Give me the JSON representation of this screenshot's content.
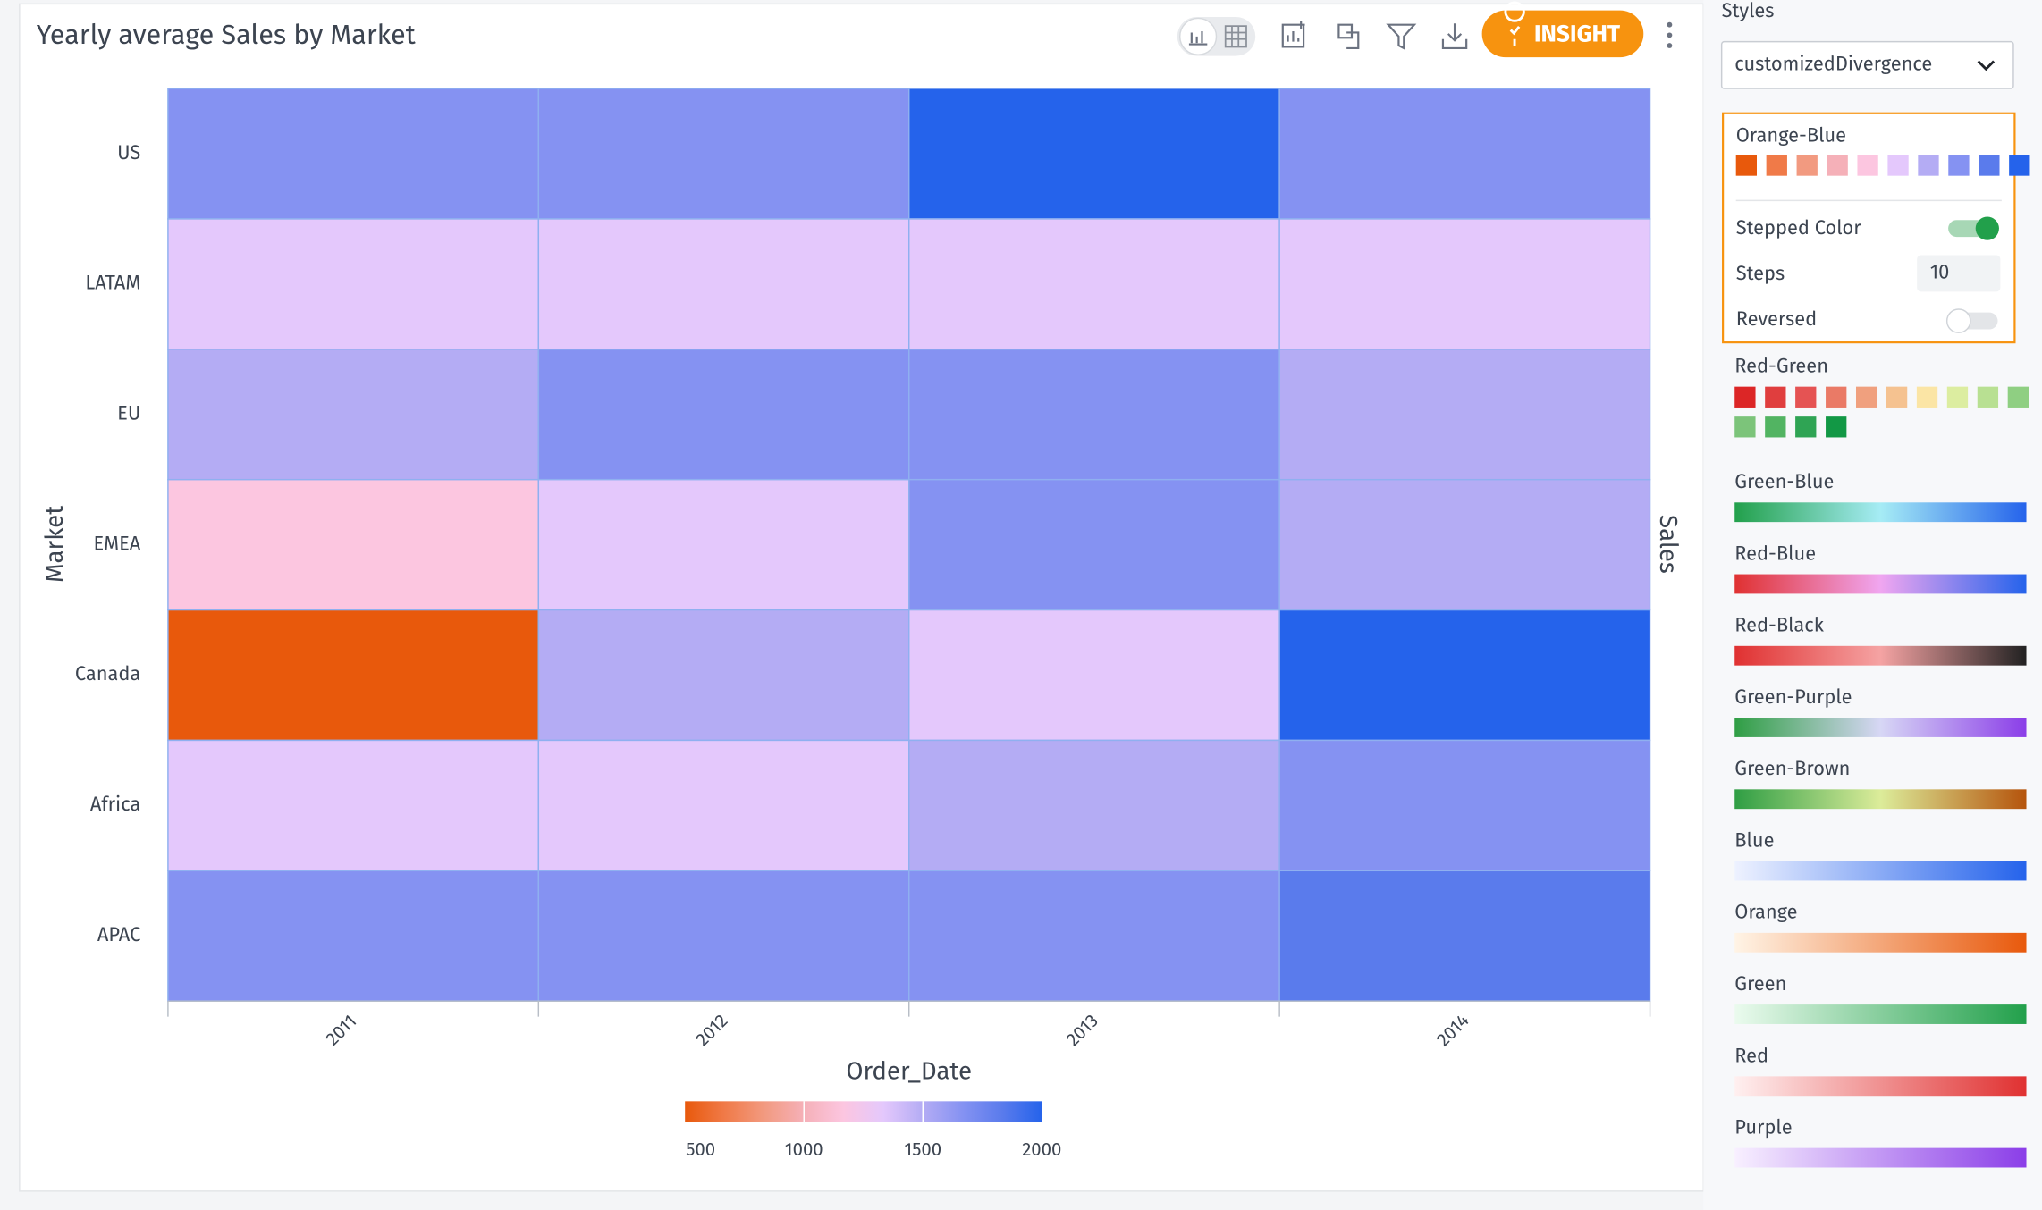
{
  "header": {
    "title": "Yearly average Sales by Market",
    "insight_button": "INSIGHT"
  },
  "chart_data": {
    "type": "heatmap",
    "x_label": "Order_Date",
    "y_label": "Market",
    "colorbar_label": "Sales",
    "categories": [
      "2011",
      "2012",
      "2013",
      "2014"
    ],
    "rows": [
      "US",
      "LATAM",
      "EU",
      "EMEA",
      "Canada",
      "Africa",
      "APAC"
    ],
    "values": [
      [
        1620,
        1640,
        1950,
        1630
      ],
      [
        1330,
        1320,
        1340,
        1330
      ],
      [
        1480,
        1610,
        1630,
        1490
      ],
      [
        1200,
        1340,
        1620,
        1500
      ],
      [
        560,
        1470,
        1330,
        1960
      ],
      [
        1310,
        1330,
        1480,
        1610
      ],
      [
        1620,
        1630,
        1640,
        1790
      ]
    ],
    "clim": [
      500,
      2000
    ],
    "colorbar_ticks": [
      500,
      1000,
      1500,
      2000
    ],
    "colors": [
      "#e8590c",
      "#f07a48",
      "#f29a80",
      "#f5b0b8",
      "#fcc6e0",
      "#e4c8fc",
      "#b4acf4",
      "#8592f2",
      "#5a7bec",
      "#2563eb"
    ]
  },
  "styles_panel": {
    "label": "Styles",
    "selected": "customizedDivergence",
    "stepped_color_label": "Stepped Color",
    "stepped_color": true,
    "steps_label": "Steps",
    "steps": 10,
    "reversed_label": "Reversed",
    "reversed": false,
    "palettes": [
      {
        "name": "Orange-Blue"
      },
      {
        "name": "Red-Green",
        "colors": [
          "#dc2626",
          "#e03e3e",
          "#e55353",
          "#ea7a66",
          "#f0a07e",
          "#f5c290",
          "#fbe5a5",
          "#dceda0",
          "#b8e092",
          "#8fcf82",
          "#7cc47a",
          "#52b462",
          "#2fa454",
          "#129845"
        ]
      },
      {
        "name": "Green-Blue",
        "colors": [
          "#22a04b",
          "#a6ecf5",
          "#2563eb"
        ]
      },
      {
        "name": "Red-Blue",
        "colors": [
          "#e03131",
          "#f0a6f0",
          "#2563eb"
        ]
      },
      {
        "name": "Red-Black",
        "colors": [
          "#e03131",
          "#f5a3a3",
          "#222222"
        ]
      },
      {
        "name": "Green-Purple",
        "colors": [
          "#2f9e44",
          "#d7d7f5",
          "#8b3ee8"
        ]
      },
      {
        "name": "Green-Brown",
        "colors": [
          "#2f9e44",
          "#dcec9a",
          "#b5540c"
        ]
      },
      {
        "name": "Blue",
        "colors": [
          "#eef2ff",
          "#2563eb"
        ]
      },
      {
        "name": "Orange",
        "colors": [
          "#fff4e6",
          "#e8590c"
        ]
      },
      {
        "name": "Green",
        "colors": [
          "#ebfbee",
          "#22a04b"
        ]
      },
      {
        "name": "Red",
        "colors": [
          "#fff0f0",
          "#e03131"
        ]
      },
      {
        "name": "Purple",
        "colors": [
          "#f8f0ff",
          "#8b3ee8"
        ]
      }
    ]
  }
}
